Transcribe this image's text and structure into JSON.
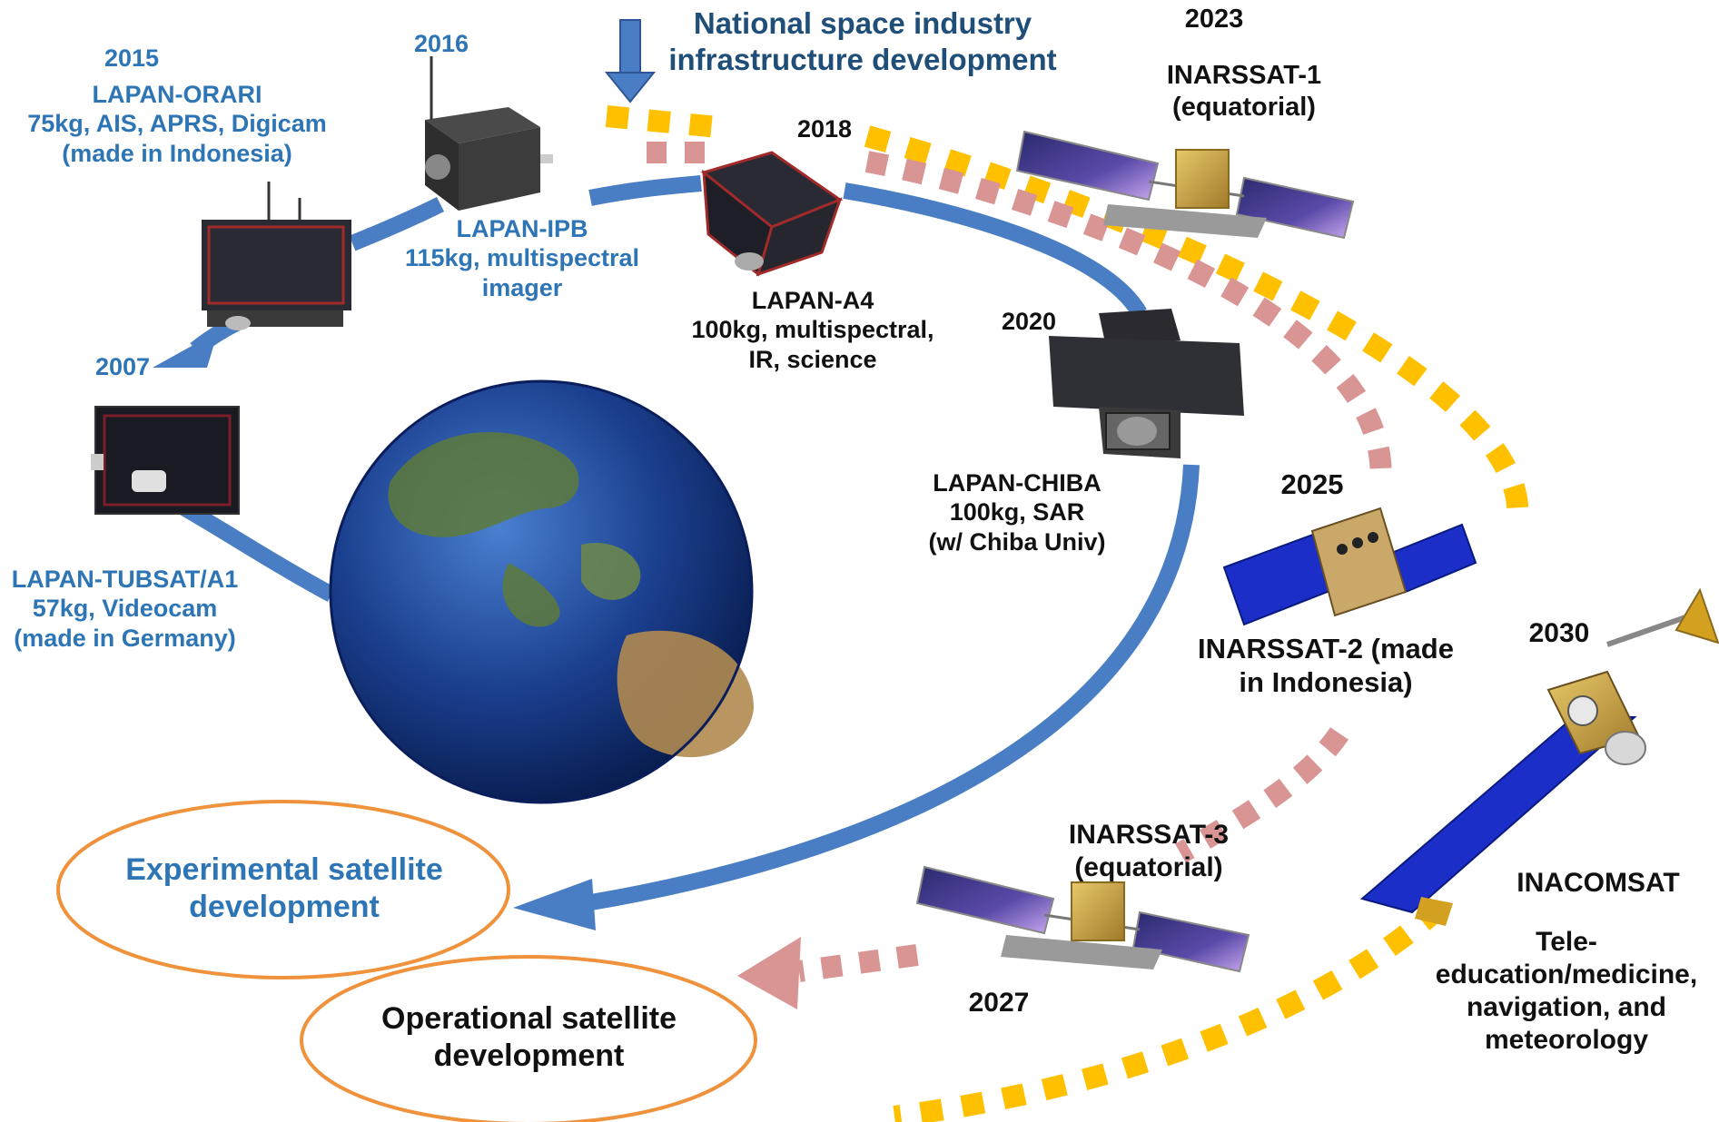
{
  "header": {
    "line1": "National space industry",
    "line2": "infrastructure development"
  },
  "experimental": {
    "lapan_tubsat": {
      "year": "2007",
      "name": "LAPAN-TUBSAT/A1",
      "spec": "57kg, Videocam",
      "origin": "(made in Germany)"
    },
    "lapan_orari": {
      "year": "2015",
      "name": "LAPAN-ORARI",
      "spec": "75kg, AIS, APRS, Digicam",
      "origin": "(made in Indonesia)"
    },
    "lapan_ipb": {
      "year": "2016",
      "name": "LAPAN-IPB",
      "spec": "115kg, multispectral",
      "spec2": "imager"
    },
    "lapan_a4": {
      "year": "2018",
      "name": "LAPAN-A4",
      "spec": "100kg, multispectral,",
      "spec2": "IR, science"
    },
    "lapan_chiba": {
      "year": "2020",
      "name": "LAPAN-CHIBA",
      "spec": "100kg, SAR",
      "spec2": "(w/ Chiba Univ)"
    }
  },
  "operational": {
    "inarssat1": {
      "year": "2023",
      "name": "INARSSAT-1",
      "note": "(equatorial)"
    },
    "inarssat2": {
      "year": "2025",
      "name_line1": "INARSSAT-2 (made",
      "name_line2": "in Indonesia)"
    },
    "inarssat3": {
      "year": "2027",
      "name": "INARSSAT-3",
      "note": "(equatorial)"
    },
    "inacomsat": {
      "year": "2030",
      "name": "INACOMSAT",
      "desc1": "Tele-",
      "desc2": "education/medicine,",
      "desc3": "navigation, and",
      "desc4": "meteorology"
    }
  },
  "legend": {
    "experimental_line1": "Experimental satellite",
    "experimental_line2": "development",
    "operational_line1": "Operational satellite",
    "operational_line2": "development"
  },
  "colors": {
    "blue_arc": "#4A7EC4",
    "blue_text": "#2E75B6",
    "navy_text": "#1F4E79",
    "yellow_dash": "#FFC000",
    "pink_dash": "#D99594",
    "ellipse_stroke": "#F0913C",
    "solar_panel": "#3A3A8C",
    "ocean": "#1A3E8C"
  },
  "icons": [
    "satellite-lapan-tubsat-icon",
    "satellite-lapan-orari-icon",
    "satellite-lapan-ipb-icon",
    "satellite-lapan-a4-icon",
    "satellite-lapan-chiba-icon",
    "satellite-inarssat1-icon",
    "satellite-inarssat2-icon",
    "satellite-inarssat3-icon",
    "satellite-inacomsat-icon",
    "earth-globe-icon"
  ]
}
